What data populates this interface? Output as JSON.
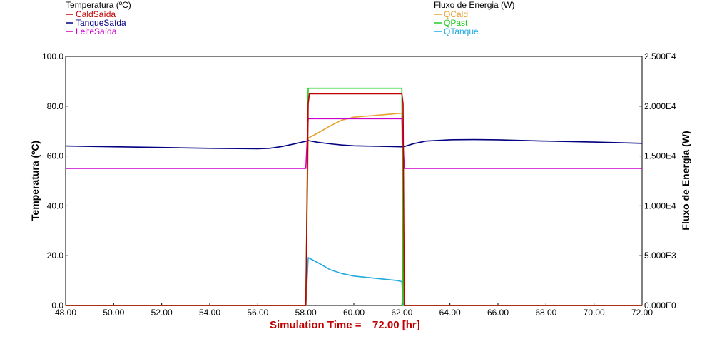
{
  "legend_left": {
    "title": "Temperatura (ºC)",
    "items": [
      {
        "label": "CaldSaída",
        "color": "#c00000"
      },
      {
        "label": "TanqueSaída",
        "color": "#000080"
      },
      {
        "label": "LeiteSaída",
        "color": "#cc00cc"
      }
    ]
  },
  "legend_right": {
    "title": "Fluxo de Energia (W)",
    "items": [
      {
        "label": "QCald",
        "color": "#e8a030"
      },
      {
        "label": "QPast",
        "color": "#22cc22"
      },
      {
        "label": "QTanque",
        "color": "#22aadd"
      }
    ]
  },
  "footer": {
    "sim_time_label": "Simulation Time =",
    "sim_time_value": "72.00 [hr]"
  },
  "chart_data": {
    "type": "line",
    "title": "",
    "xlabel": "",
    "ylabel_left": "Temperatura (ºC)",
    "ylabel_right": "Fluxo de Energia (W)",
    "xlim": [
      48,
      72
    ],
    "ylim_left": [
      0,
      100
    ],
    "ylim_right": [
      0,
      25000
    ],
    "x_ticks": [
      "48.00",
      "50.00",
      "52.00",
      "54.00",
      "56.00",
      "58.00",
      "60.00",
      "62.00",
      "64.00",
      "66.00",
      "68.00",
      "70.00",
      "72.00"
    ],
    "y_left_ticks": [
      "0.0",
      "20.0",
      "40.0",
      "60.0",
      "80.0",
      "100.0"
    ],
    "y_right_ticks": [
      "0.000E0",
      "5.000E3",
      "1.000E4",
      "1.500E4",
      "2.000E4",
      "2.500E4"
    ],
    "grid": false,
    "series": [
      {
        "name": "CaldSaída",
        "axis": "left",
        "color": "#c00000",
        "x": [
          48,
          58.0,
          58.1,
          58.15,
          62.0,
          62.05,
          62.1,
          72
        ],
        "y": [
          0,
          0,
          81,
          85,
          85,
          81,
          0,
          0
        ]
      },
      {
        "name": "TanqueSaída",
        "axis": "left",
        "color": "#000080",
        "x": [
          48,
          50,
          52,
          54,
          56,
          56.5,
          57,
          57.5,
          58,
          58.1,
          58.5,
          59,
          59.5,
          60,
          61,
          62,
          62.1,
          62.5,
          63,
          64,
          65,
          66,
          68,
          70,
          72
        ],
        "y": [
          64,
          63.7,
          63.4,
          63.1,
          62.9,
          63.1,
          63.8,
          64.8,
          65.9,
          66.2,
          65.5,
          64.9,
          64.4,
          64.1,
          63.9,
          63.7,
          63.8,
          65,
          66,
          66.5,
          66.6,
          66.5,
          66,
          65.6,
          65.1
        ]
      },
      {
        "name": "LeiteSaída",
        "axis": "left",
        "color": "#cc00cc",
        "x": [
          48,
          58.0,
          58.1,
          62.0,
          62.1,
          72
        ],
        "y": [
          55,
          55,
          75,
          75,
          55,
          55
        ]
      },
      {
        "name": "QCald",
        "axis": "right",
        "color": "#e8a030",
        "x": [
          48,
          58.0,
          58.1,
          58.5,
          59,
          59.5,
          60,
          61,
          62,
          62.1,
          72
        ],
        "y": [
          0,
          0,
          16800,
          17300,
          18000,
          18600,
          18900,
          19100,
          19300,
          0,
          0
        ]
      },
      {
        "name": "QPast",
        "axis": "right",
        "color": "#22cc22",
        "x": [
          48,
          58.0,
          58.1,
          62.0,
          62.05,
          72
        ],
        "y": [
          0,
          0,
          21800,
          21800,
          0,
          0
        ]
      },
      {
        "name": "QTanque",
        "axis": "right",
        "color": "#22aadd",
        "x": [
          48,
          58.0,
          58.1,
          58.5,
          59,
          59.5,
          60,
          61,
          61.8,
          62,
          62.05,
          72
        ],
        "y": [
          0,
          0,
          4800,
          4300,
          3600,
          3200,
          2950,
          2700,
          2500,
          2400,
          0,
          0
        ]
      }
    ]
  }
}
